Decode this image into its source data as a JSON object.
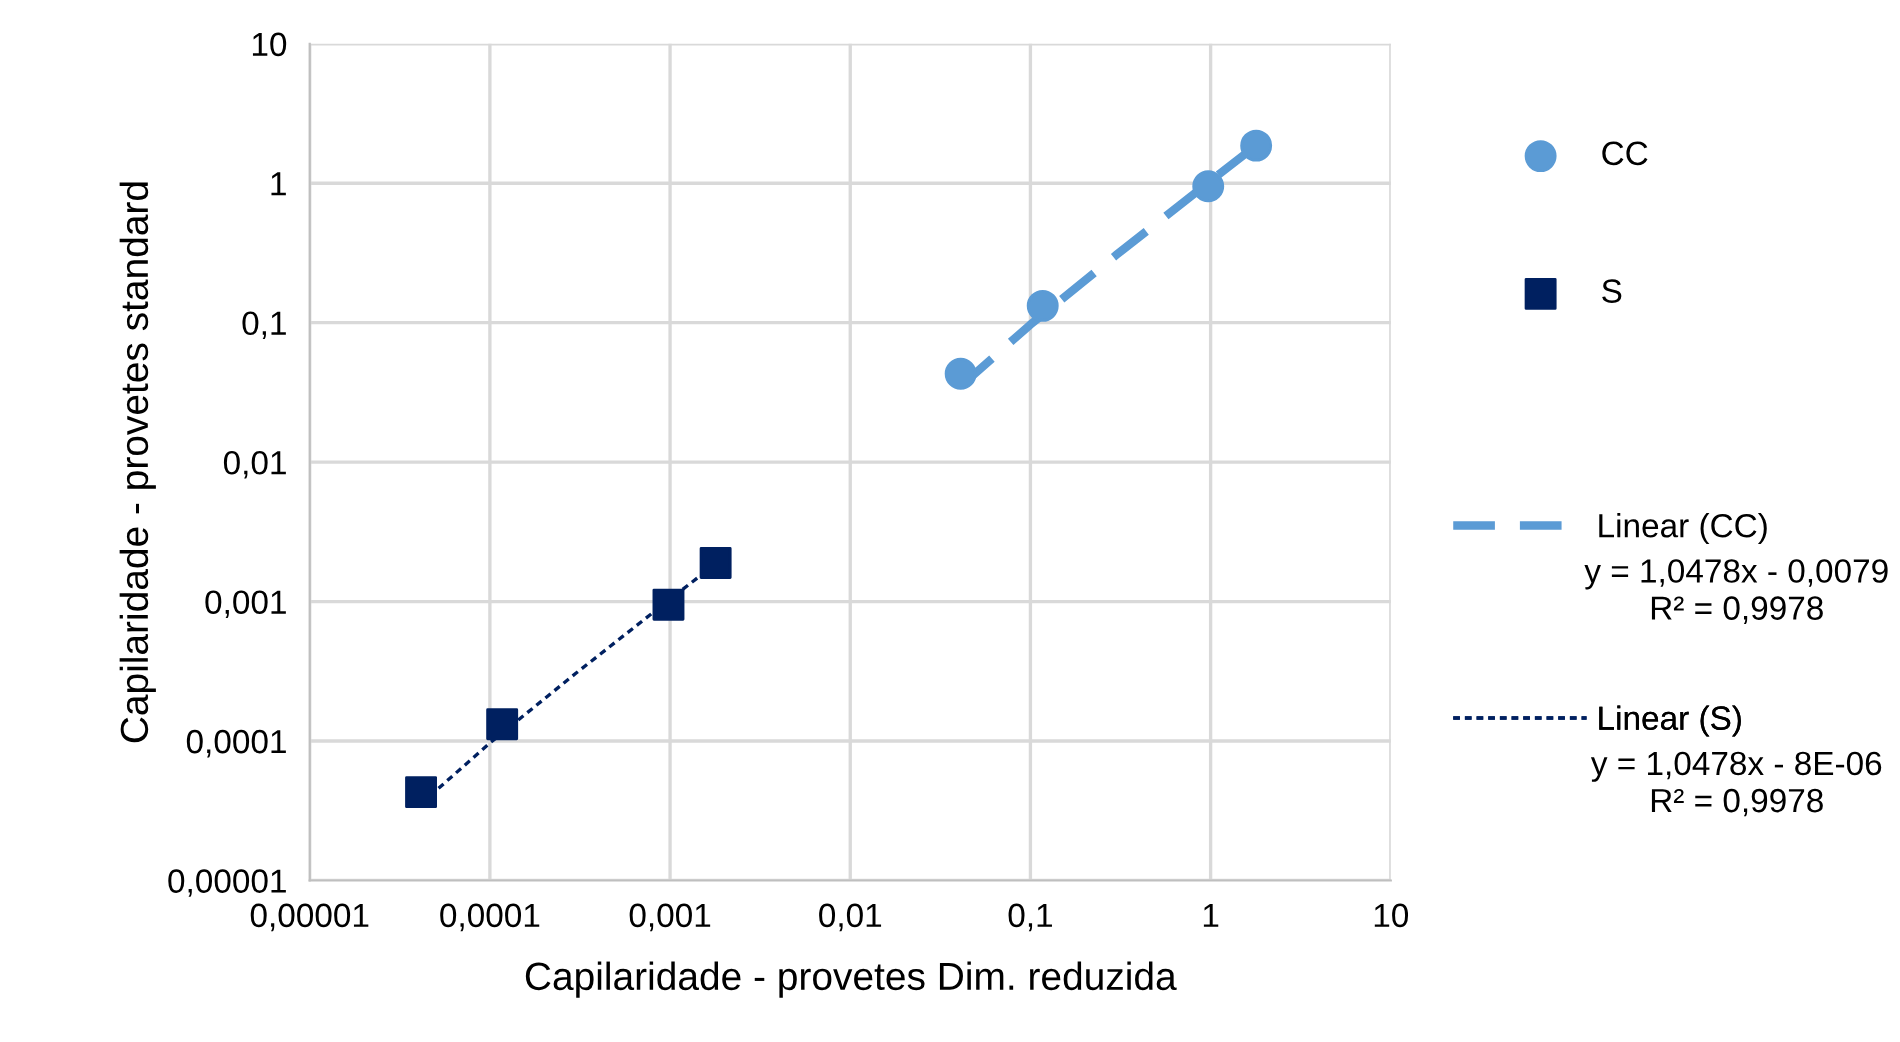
{
  "chart_data": {
    "type": "scatter",
    "xlabel": "Capilaridade - provetes Dim. reduzida",
    "ylabel": "Capilaridade - provetes standard",
    "log": "xy",
    "xlim": [
      1e-05,
      10
    ],
    "ylim": [
      1e-05,
      10
    ],
    "xticks": [
      {
        "value": 1e-05,
        "label": "0,00001"
      },
      {
        "value": 0.0001,
        "label": "0,0001"
      },
      {
        "value": 0.001,
        "label": "0,001"
      },
      {
        "value": 0.01,
        "label": "0,01"
      },
      {
        "value": 0.1,
        "label": "0,1"
      },
      {
        "value": 1,
        "label": "1"
      },
      {
        "value": 10,
        "label": "10"
      }
    ],
    "yticks": [
      {
        "value": 1e-05,
        "label": "0,00001"
      },
      {
        "value": 0.0001,
        "label": "0,0001"
      },
      {
        "value": 0.001,
        "label": "0,001"
      },
      {
        "value": 0.01,
        "label": "0,01"
      },
      {
        "value": 0.1,
        "label": "0,1"
      },
      {
        "value": 1,
        "label": "1"
      },
      {
        "value": 10,
        "label": "10"
      }
    ],
    "grid": true,
    "legend": "right",
    "series": [
      {
        "name": "CC",
        "marker": "circle",
        "color": "#5b9bd5",
        "x": [
          0.041,
          0.117,
          0.97,
          1.79
        ],
        "values": [
          0.043,
          0.132,
          0.95,
          1.86
        ]
      },
      {
        "name": "S",
        "marker": "square",
        "color": "#002060",
        "x": [
          4.15e-05,
          0.000117,
          0.00098,
          0.00179
        ],
        "values": [
          4.3e-05,
          0.000132,
          0.00095,
          0.00189
        ]
      },
      {
        "name": "Linear (CC)",
        "type": "line",
        "line_style": "dashed",
        "color": "#5b9bd5",
        "x": [
          0.041,
          0.1,
          0.3,
          1,
          1.79
        ],
        "values": [
          0.0351,
          0.0969,
          0.3064,
          1.0399,
          1.8677
        ]
      },
      {
        "name": "Linear (S)",
        "type": "line",
        "line_style": "dotted",
        "color": "#002060",
        "x": [
          4.15e-05,
          0.0001,
          0.0003,
          0.001,
          0.00179
        ],
        "values": [
          3.55e-05,
          9.68e-05,
          0.000306,
          0.0010398,
          0.0018676
        ]
      }
    ],
    "annotations": [
      "y = 1,0478x - 0,0079\nR² = 0,9978",
      "y = 1,0478x - 8E-06\nR² = 0,9978"
    ]
  }
}
